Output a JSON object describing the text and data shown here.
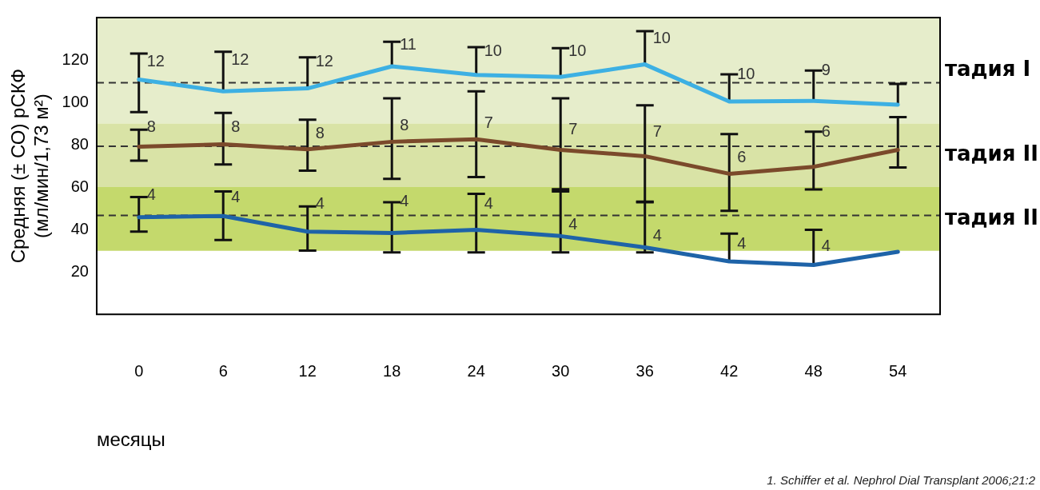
{
  "chart_data": {
    "type": "line",
    "xlabel": "месяцы",
    "ylabel": "Средняя (± СО) рСКФ\n(мл/мин/1,73 м²)",
    "categories": [
      "0",
      "6",
      "12",
      "18",
      "24",
      "30",
      "36",
      "42",
      "48",
      "54"
    ],
    "ylim": [
      0,
      140
    ],
    "yticks": [
      20,
      40,
      60,
      80,
      100,
      120
    ],
    "grid": false,
    "legend": false,
    "marker": "none",
    "line_style": "solid",
    "series": [
      {
        "color": "#3db0e3",
        "values": [
          110.8,
          105.2,
          106.6,
          117,
          112.9,
          112,
          117.9,
          100.4,
          100.7,
          98.9
        ],
        "errors": [
          [
            95.4,
            123
          ],
          [
            105.2,
            123.9
          ],
          [
            106.6,
            121.2
          ],
          [
            117,
            128.6
          ],
          [
            112.9,
            126
          ],
          [
            112,
            125.6
          ],
          [
            117.9,
            133.6
          ],
          [
            100.4,
            113.2
          ],
          [
            100.7,
            115
          ],
          [
            98.9,
            108.7
          ]
        ]
      },
      {
        "color": "#7b4a2b",
        "values": [
          79.1,
          80.2,
          77.9,
          81.4,
          82.6,
          77.6,
          74.6,
          66.3,
          69.6,
          77.6
        ],
        "errors": [
          [
            72.5,
            87.1
          ],
          [
            70.7,
            95
          ],
          [
            67.8,
            91.8
          ],
          [
            63.9,
            101.9
          ],
          [
            64.8,
            105.2
          ],
          [
            59,
            101.9
          ],
          [
            53.2,
            98.6
          ],
          [
            48.8,
            85
          ],
          [
            58.9,
            86.2
          ],
          [
            69.3,
            93
          ]
        ]
      },
      {
        "color": "#1e63a8",
        "values": [
          45.8,
          46.4,
          39,
          38.4,
          39.9,
          36.9,
          31.6,
          25,
          23.3,
          29.5
        ],
        "errors": [
          [
            39,
            55.3
          ],
          [
            35.1,
            58
          ],
          [
            30.1,
            50.9
          ],
          [
            29.2,
            52.9
          ],
          [
            29.2,
            56.8
          ],
          [
            29.2,
            58
          ],
          [
            29.2,
            52.9
          ],
          [
            25,
            38.1
          ],
          [
            23.3,
            39.9
          ],
          null
        ]
      }
    ],
    "ref_lines": [
      {
        "axis": "y",
        "value": 109.3,
        "color": "#333333",
        "line_style": "dashed"
      },
      {
        "axis": "y",
        "value": 79.3,
        "color": "#333333",
        "line_style": "dashed"
      },
      {
        "axis": "y",
        "value": 46.7,
        "color": "#333333",
        "line_style": "dashed"
      }
    ],
    "bands": [
      {
        "axis": "y",
        "from": 90,
        "to": 140,
        "label": "тадия I",
        "color": "#e6edcb"
      },
      {
        "axis": "y",
        "from": 60,
        "to": 90,
        "label": "тадия II",
        "color": "#d9e3a6"
      },
      {
        "axis": "y",
        "from": 30,
        "to": 60,
        "label": "тадия III",
        "color": "#c4d96c"
      }
    ],
    "annotations": [
      {
        "text": "12",
        "x": "0",
        "y": 119
      },
      {
        "text": "12",
        "x": "6",
        "y": 120
      },
      {
        "text": "12",
        "x": "12",
        "y": 119
      },
      {
        "text": "11",
        "x": "18",
        "y": 127
      },
      {
        "text": "10",
        "x": "24",
        "y": 124
      },
      {
        "text": "10",
        "x": "30",
        "y": 124
      },
      {
        "text": "10",
        "x": "36",
        "y": 130
      },
      {
        "text": "10",
        "x": "42",
        "y": 113.2
      },
      {
        "text": "9",
        "x": "48",
        "y": 115
      },
      {
        "text": "8",
        "x": "0",
        "y": 88
      },
      {
        "text": "8",
        "x": "6",
        "y": 88
      },
      {
        "text": "8",
        "x": "12",
        "y": 85
      },
      {
        "text": "8",
        "x": "18",
        "y": 89
      },
      {
        "text": "7",
        "x": "24",
        "y": 90
      },
      {
        "text": "7",
        "x": "30",
        "y": 87
      },
      {
        "text": "7",
        "x": "36",
        "y": 86
      },
      {
        "text": "6",
        "x": "42",
        "y": 74
      },
      {
        "text": "6",
        "x": "48",
        "y": 86
      },
      {
        "text": "4",
        "x": "0",
        "y": 56
      },
      {
        "text": "4",
        "x": "6",
        "y": 55
      },
      {
        "text": "4",
        "x": "12",
        "y": 52
      },
      {
        "text": "4",
        "x": "18",
        "y": 53
      },
      {
        "text": "4",
        "x": "24",
        "y": 52
      },
      {
        "text": "4",
        "x": "30",
        "y": 42
      },
      {
        "text": "4",
        "x": "36",
        "y": 37
      },
      {
        "text": "4",
        "x": "42",
        "y": 33
      },
      {
        "text": "4",
        "x": "48",
        "y": 32
      },
      "1. Schiffer et al. Nephrol Dial Transplant 2006;21:2"
    ]
  }
}
